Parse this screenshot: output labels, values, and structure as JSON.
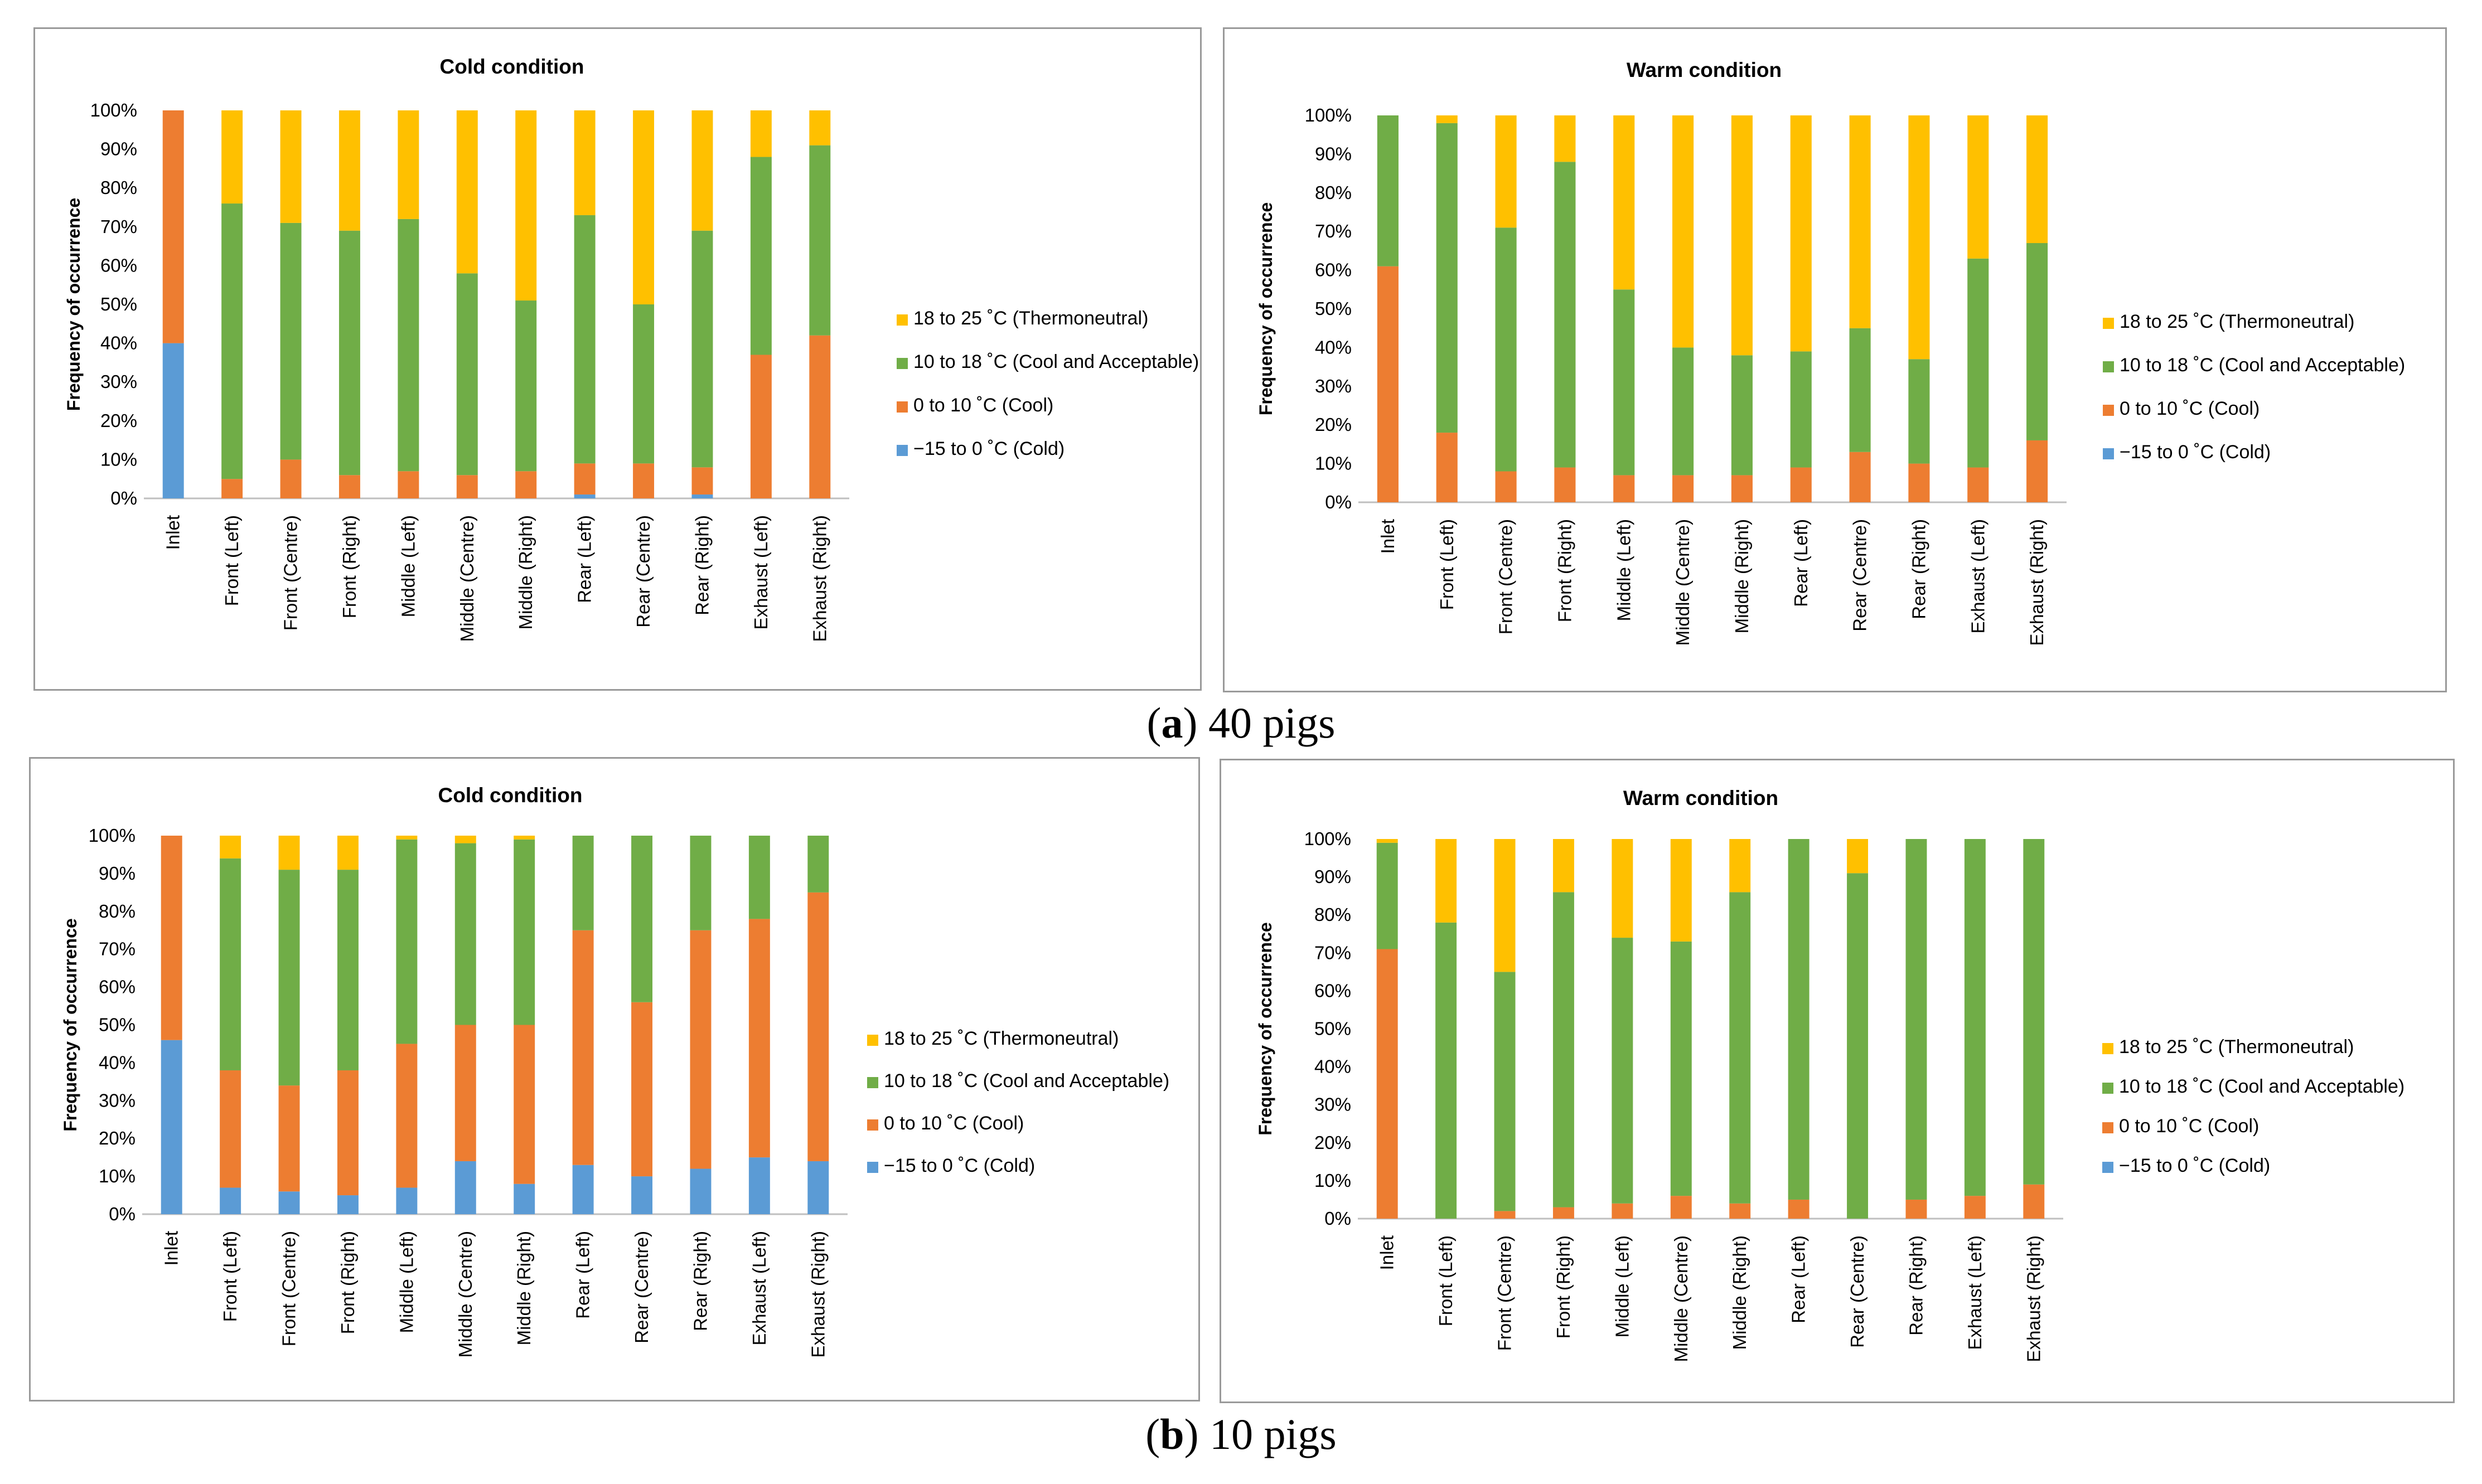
{
  "colors": {
    "cold": "#5b9bd5",
    "cool": "#ed7d31",
    "acceptable": "#70ad47",
    "thermo": "#ffc000",
    "axis": "#bfbfbf",
    "frame": "#9a9a9a"
  },
  "captions": [
    {
      "label": "a",
      "text": " 40 pigs"
    },
    {
      "label": "b",
      "text": " 10 pigs"
    }
  ],
  "chart_data": [
    {
      "type": "bar",
      "stacked": true,
      "group": "a",
      "title": "Cold condition",
      "ylabel": "Frequency of occurrence",
      "xlabel": "",
      "ylim": [
        0,
        100
      ],
      "yticks": [
        "0%",
        "10%",
        "20%",
        "30%",
        "40%",
        "50%",
        "60%",
        "70%",
        "80%",
        "90%",
        "100%"
      ],
      "categories": [
        "Inlet",
        "Front (Left)",
        "Front (Centre)",
        "Front (Right)",
        "Middle (Left)",
        "Middle (Centre)",
        "Middle (Right)",
        "Rear (Left)",
        "Rear (Centre)",
        "Rear (Right)",
        "Exhaust (Left)",
        "Exhaust (Right)"
      ],
      "legend_order": [
        3,
        2,
        1,
        0
      ],
      "series": [
        {
          "name": "−15 to 0 ˚C (Cold)",
          "color_key": "cold",
          "values": [
            40,
            0,
            0,
            0,
            0,
            0,
            0,
            1,
            0,
            1,
            0,
            0
          ]
        },
        {
          "name": "0 to 10 ˚C (Cool)",
          "color_key": "cool",
          "values": [
            60,
            5,
            10,
            6,
            7,
            6,
            7,
            8,
            9,
            7,
            37,
            42
          ]
        },
        {
          "name": "10 to 18 ˚C (Cool and Acceptable)",
          "color_key": "acceptable",
          "values": [
            0,
            71,
            61,
            63,
            65,
            52,
            44,
            64,
            41,
            61,
            51,
            49
          ]
        },
        {
          "name": "18 to 25 ˚C (Thermoneutral)",
          "color_key": "thermo",
          "values": [
            0,
            24,
            29,
            31,
            28,
            42,
            49,
            27,
            50,
            31,
            12,
            9
          ]
        }
      ]
    },
    {
      "type": "bar",
      "stacked": true,
      "group": "a",
      "title": "Warm condition",
      "ylabel": "Frequency of occurrence",
      "xlabel": "",
      "ylim": [
        0,
        100
      ],
      "yticks": [
        "0%",
        "10%",
        "20%",
        "30%",
        "40%",
        "50%",
        "60%",
        "70%",
        "80%",
        "90%",
        "100%"
      ],
      "categories": [
        "Inlet",
        "Front (Left)",
        "Front (Centre)",
        "Front (Right)",
        "Middle (Left)",
        "Middle (Centre)",
        "Middle (Right)",
        "Rear (Left)",
        "Rear (Centre)",
        "Rear (Right)",
        "Exhaust (Left)",
        "Exhaust (Right)"
      ],
      "legend_order": [
        3,
        2,
        1,
        0
      ],
      "series": [
        {
          "name": "−15 to 0 ˚C (Cold)",
          "color_key": "cold",
          "values": [
            0,
            0,
            0,
            0,
            0,
            0,
            0,
            0,
            0,
            0,
            0,
            0
          ]
        },
        {
          "name": "0 to 10 ˚C (Cool)",
          "color_key": "cool",
          "values": [
            61,
            18,
            8,
            9,
            7,
            7,
            7,
            9,
            13,
            10,
            9,
            16
          ]
        },
        {
          "name": "10 to 18 ˚C (Cool and Acceptable)",
          "color_key": "acceptable",
          "values": [
            39,
            80,
            63,
            79,
            48,
            33,
            31,
            30,
            32,
            27,
            54,
            51
          ]
        },
        {
          "name": "18 to 25 ˚C (Thermoneutral)",
          "color_key": "thermo",
          "values": [
            0,
            2,
            29,
            12,
            45,
            60,
            62,
            61,
            55,
            63,
            37,
            33
          ]
        }
      ]
    },
    {
      "type": "bar",
      "stacked": true,
      "group": "b",
      "title": "Cold condition",
      "ylabel": "Frequency of occurrence",
      "xlabel": "",
      "ylim": [
        0,
        100
      ],
      "yticks": [
        "0%",
        "10%",
        "20%",
        "30%",
        "40%",
        "50%",
        "60%",
        "70%",
        "80%",
        "90%",
        "100%"
      ],
      "categories": [
        "Inlet",
        "Front (Left)",
        "Front (Centre)",
        "Front (Right)",
        "Middle (Left)",
        "Middle (Centre)",
        "Middle (Right)",
        "Rear (Left)",
        "Rear (Centre)",
        "Rear (Right)",
        "Exhaust (Left)",
        "Exhaust (Right)"
      ],
      "legend_order": [
        3,
        2,
        1,
        0
      ],
      "series": [
        {
          "name": "−15 to 0 ˚C (Cold)",
          "color_key": "cold",
          "values": [
            46,
            7,
            6,
            5,
            7,
            14,
            8,
            13,
            10,
            12,
            15,
            14
          ]
        },
        {
          "name": "0 to 10 ˚C (Cool)",
          "color_key": "cool",
          "values": [
            54,
            31,
            28,
            33,
            38,
            36,
            42,
            62,
            46,
            63,
            63,
            71
          ]
        },
        {
          "name": "10 to 18 ˚C (Cool and Acceptable)",
          "color_key": "acceptable",
          "values": [
            0,
            56,
            57,
            53,
            54,
            48,
            49,
            25,
            44,
            25,
            22,
            15
          ]
        },
        {
          "name": "18 to 25 ˚C (Thermoneutral)",
          "color_key": "thermo",
          "values": [
            0,
            6,
            9,
            9,
            1,
            2,
            1,
            0,
            0,
            0,
            0,
            0
          ]
        }
      ]
    },
    {
      "type": "bar",
      "stacked": true,
      "group": "b",
      "title": "Warm condition",
      "ylabel": "Frequency of occurrence",
      "xlabel": "",
      "ylim": [
        0,
        100
      ],
      "yticks": [
        "0%",
        "10%",
        "20%",
        "30%",
        "40%",
        "50%",
        "60%",
        "70%",
        "80%",
        "90%",
        "100%"
      ],
      "categories": [
        "Inlet",
        "Front (Left)",
        "Front (Centre)",
        "Front (Right)",
        "Middle (Left)",
        "Middle (Centre)",
        "Middle (Right)",
        "Rear (Left)",
        "Rear (Centre)",
        "Rear (Right)",
        "Exhaust (Left)",
        "Exhaust (Right)"
      ],
      "legend_order": [
        3,
        2,
        1,
        0
      ],
      "series": [
        {
          "name": "−15 to 0 ˚C (Cold)",
          "color_key": "cold",
          "values": [
            0,
            0,
            0,
            0,
            0,
            0,
            0,
            0,
            0,
            0,
            0,
            0
          ]
        },
        {
          "name": "0 to 10 ˚C (Cool)",
          "color_key": "cool",
          "values": [
            71,
            0,
            2,
            3,
            4,
            6,
            4,
            5,
            0,
            5,
            6,
            9
          ]
        },
        {
          "name": "10 to 18 ˚C (Cool and Acceptable)",
          "color_key": "acceptable",
          "values": [
            28,
            78,
            63,
            83,
            70,
            67,
            82,
            95,
            91,
            95,
            94,
            91
          ]
        },
        {
          "name": "18 to 25 ˚C (Thermoneutral)",
          "color_key": "thermo",
          "values": [
            1,
            22,
            35,
            14,
            26,
            27,
            14,
            0,
            9,
            0,
            0,
            0
          ]
        }
      ]
    }
  ]
}
